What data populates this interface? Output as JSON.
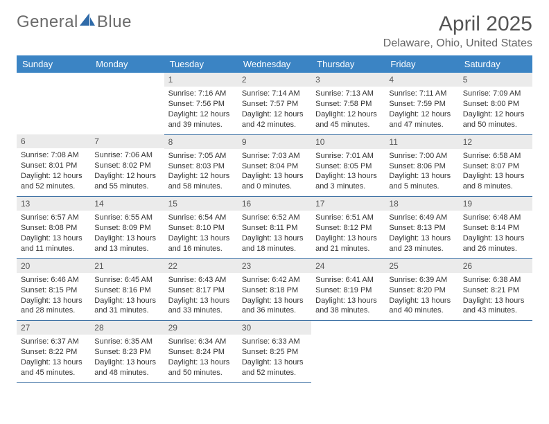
{
  "brand": {
    "part1": "General",
    "part2": "Blue"
  },
  "title": "April 2025",
  "location": "Delaware, Ohio, United States",
  "colors": {
    "header_bg": "#3b84c4",
    "header_text": "#ffffff",
    "row_border": "#3b6fa3",
    "daynum_bg": "#ebebeb",
    "logo_blue": "#2f6aa8",
    "text": "#333333"
  },
  "weekdays": [
    "Sunday",
    "Monday",
    "Tuesday",
    "Wednesday",
    "Thursday",
    "Friday",
    "Saturday"
  ],
  "weeks": [
    [
      null,
      null,
      {
        "n": "1",
        "sr": "Sunrise: 7:16 AM",
        "ss": "Sunset: 7:56 PM",
        "dl": "Daylight: 12 hours and 39 minutes."
      },
      {
        "n": "2",
        "sr": "Sunrise: 7:14 AM",
        "ss": "Sunset: 7:57 PM",
        "dl": "Daylight: 12 hours and 42 minutes."
      },
      {
        "n": "3",
        "sr": "Sunrise: 7:13 AM",
        "ss": "Sunset: 7:58 PM",
        "dl": "Daylight: 12 hours and 45 minutes."
      },
      {
        "n": "4",
        "sr": "Sunrise: 7:11 AM",
        "ss": "Sunset: 7:59 PM",
        "dl": "Daylight: 12 hours and 47 minutes."
      },
      {
        "n": "5",
        "sr": "Sunrise: 7:09 AM",
        "ss": "Sunset: 8:00 PM",
        "dl": "Daylight: 12 hours and 50 minutes."
      }
    ],
    [
      {
        "n": "6",
        "sr": "Sunrise: 7:08 AM",
        "ss": "Sunset: 8:01 PM",
        "dl": "Daylight: 12 hours and 52 minutes."
      },
      {
        "n": "7",
        "sr": "Sunrise: 7:06 AM",
        "ss": "Sunset: 8:02 PM",
        "dl": "Daylight: 12 hours and 55 minutes."
      },
      {
        "n": "8",
        "sr": "Sunrise: 7:05 AM",
        "ss": "Sunset: 8:03 PM",
        "dl": "Daylight: 12 hours and 58 minutes."
      },
      {
        "n": "9",
        "sr": "Sunrise: 7:03 AM",
        "ss": "Sunset: 8:04 PM",
        "dl": "Daylight: 13 hours and 0 minutes."
      },
      {
        "n": "10",
        "sr": "Sunrise: 7:01 AM",
        "ss": "Sunset: 8:05 PM",
        "dl": "Daylight: 13 hours and 3 minutes."
      },
      {
        "n": "11",
        "sr": "Sunrise: 7:00 AM",
        "ss": "Sunset: 8:06 PM",
        "dl": "Daylight: 13 hours and 5 minutes."
      },
      {
        "n": "12",
        "sr": "Sunrise: 6:58 AM",
        "ss": "Sunset: 8:07 PM",
        "dl": "Daylight: 13 hours and 8 minutes."
      }
    ],
    [
      {
        "n": "13",
        "sr": "Sunrise: 6:57 AM",
        "ss": "Sunset: 8:08 PM",
        "dl": "Daylight: 13 hours and 11 minutes."
      },
      {
        "n": "14",
        "sr": "Sunrise: 6:55 AM",
        "ss": "Sunset: 8:09 PM",
        "dl": "Daylight: 13 hours and 13 minutes."
      },
      {
        "n": "15",
        "sr": "Sunrise: 6:54 AM",
        "ss": "Sunset: 8:10 PM",
        "dl": "Daylight: 13 hours and 16 minutes."
      },
      {
        "n": "16",
        "sr": "Sunrise: 6:52 AM",
        "ss": "Sunset: 8:11 PM",
        "dl": "Daylight: 13 hours and 18 minutes."
      },
      {
        "n": "17",
        "sr": "Sunrise: 6:51 AM",
        "ss": "Sunset: 8:12 PM",
        "dl": "Daylight: 13 hours and 21 minutes."
      },
      {
        "n": "18",
        "sr": "Sunrise: 6:49 AM",
        "ss": "Sunset: 8:13 PM",
        "dl": "Daylight: 13 hours and 23 minutes."
      },
      {
        "n": "19",
        "sr": "Sunrise: 6:48 AM",
        "ss": "Sunset: 8:14 PM",
        "dl": "Daylight: 13 hours and 26 minutes."
      }
    ],
    [
      {
        "n": "20",
        "sr": "Sunrise: 6:46 AM",
        "ss": "Sunset: 8:15 PM",
        "dl": "Daylight: 13 hours and 28 minutes."
      },
      {
        "n": "21",
        "sr": "Sunrise: 6:45 AM",
        "ss": "Sunset: 8:16 PM",
        "dl": "Daylight: 13 hours and 31 minutes."
      },
      {
        "n": "22",
        "sr": "Sunrise: 6:43 AM",
        "ss": "Sunset: 8:17 PM",
        "dl": "Daylight: 13 hours and 33 minutes."
      },
      {
        "n": "23",
        "sr": "Sunrise: 6:42 AM",
        "ss": "Sunset: 8:18 PM",
        "dl": "Daylight: 13 hours and 36 minutes."
      },
      {
        "n": "24",
        "sr": "Sunrise: 6:41 AM",
        "ss": "Sunset: 8:19 PM",
        "dl": "Daylight: 13 hours and 38 minutes."
      },
      {
        "n": "25",
        "sr": "Sunrise: 6:39 AM",
        "ss": "Sunset: 8:20 PM",
        "dl": "Daylight: 13 hours and 40 minutes."
      },
      {
        "n": "26",
        "sr": "Sunrise: 6:38 AM",
        "ss": "Sunset: 8:21 PM",
        "dl": "Daylight: 13 hours and 43 minutes."
      }
    ],
    [
      {
        "n": "27",
        "sr": "Sunrise: 6:37 AM",
        "ss": "Sunset: 8:22 PM",
        "dl": "Daylight: 13 hours and 45 minutes."
      },
      {
        "n": "28",
        "sr": "Sunrise: 6:35 AM",
        "ss": "Sunset: 8:23 PM",
        "dl": "Daylight: 13 hours and 48 minutes."
      },
      {
        "n": "29",
        "sr": "Sunrise: 6:34 AM",
        "ss": "Sunset: 8:24 PM",
        "dl": "Daylight: 13 hours and 50 minutes."
      },
      {
        "n": "30",
        "sr": "Sunrise: 6:33 AM",
        "ss": "Sunset: 8:25 PM",
        "dl": "Daylight: 13 hours and 52 minutes."
      },
      null,
      null,
      null
    ]
  ]
}
